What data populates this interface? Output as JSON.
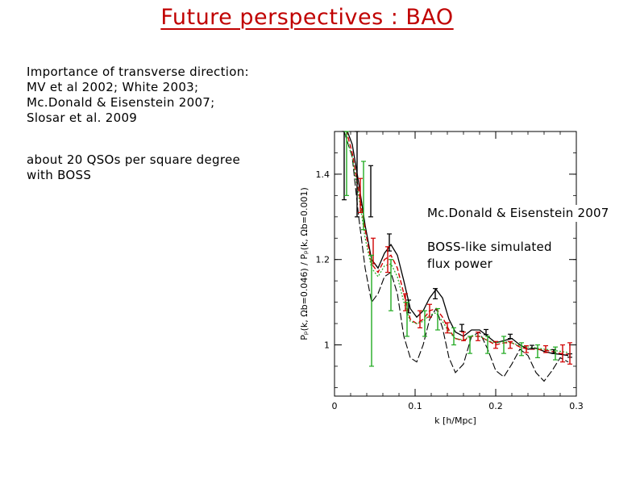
{
  "slide": {
    "title": "Future perspectives : BAO",
    "intro_lines": [
      "Importance of transverse direction:",
      "MV et al 2002; White 2003;",
      "Mc.Donald & Eisenstein 2007;",
      "Slosar et al. 2009"
    ],
    "boss_lines": [
      "about 20 QSOs per square degree",
      "with BOSS"
    ],
    "annotations": {
      "mcdonald": "Mc.Donald & Eisenstein 2007",
      "boss_lines": [
        "BOSS-like simulated",
        "flux power"
      ]
    }
  },
  "chart_data": {
    "type": "line",
    "xlabel": "k [h/Mpc]",
    "ylabel": "Pₚ(k, Ωb=0.046) / Pₚ(k, Ωb=0.001)",
    "xlim": [
      0,
      0.3
    ],
    "ylim": [
      0.88,
      1.5
    ],
    "xticks": [
      0,
      0.1,
      0.2,
      0.3
    ],
    "xtick_labels": [
      "0",
      "0.1",
      "0.2",
      "0.3"
    ],
    "yticks": [
      1,
      1.2,
      1.4
    ],
    "ytick_labels": [
      "1",
      "1.2",
      "1.4"
    ],
    "grid": false,
    "colors": {
      "black": "#000000",
      "red": "#d00000",
      "green": "#22aa22"
    },
    "series": [
      {
        "style": "black-solid",
        "x": [
          0.012,
          0.022,
          0.03,
          0.038,
          0.046,
          0.054,
          0.062,
          0.07,
          0.078,
          0.086,
          0.094,
          0.102,
          0.11,
          0.118,
          0.126,
          0.134,
          0.142,
          0.15,
          0.16,
          0.17,
          0.18,
          0.19,
          0.2,
          0.21,
          0.22,
          0.23,
          0.24,
          0.25,
          0.26,
          0.27,
          0.28,
          0.29
        ],
        "y": [
          1.52,
          1.47,
          1.38,
          1.28,
          1.2,
          1.18,
          1.215,
          1.235,
          1.21,
          1.15,
          1.085,
          1.065,
          1.08,
          1.11,
          1.13,
          1.11,
          1.06,
          1.03,
          1.02,
          1.035,
          1.035,
          1.02,
          1.005,
          1.01,
          1.015,
          1.0,
          0.99,
          0.992,
          0.985,
          0.98,
          0.978,
          0.975
        ]
      },
      {
        "style": "black-long-dash",
        "x": [
          0.012,
          0.022,
          0.03,
          0.038,
          0.046,
          0.054,
          0.062,
          0.07,
          0.078,
          0.086,
          0.094,
          0.102,
          0.11,
          0.118,
          0.126,
          0.134,
          0.142,
          0.15,
          0.16,
          0.17,
          0.18,
          0.19,
          0.2,
          0.21,
          0.22,
          0.23,
          0.24,
          0.25,
          0.26,
          0.27,
          0.28,
          0.29
        ],
        "y": [
          1.5,
          1.44,
          1.3,
          1.18,
          1.1,
          1.12,
          1.16,
          1.17,
          1.12,
          1.02,
          0.97,
          0.96,
          1.0,
          1.06,
          1.085,
          1.04,
          0.97,
          0.935,
          0.955,
          1.02,
          1.03,
          0.99,
          0.94,
          0.925,
          0.955,
          0.99,
          0.975,
          0.935,
          0.915,
          0.94,
          0.97,
          0.96
        ]
      },
      {
        "style": "red-dashed",
        "x": [
          0.012,
          0.022,
          0.03,
          0.038,
          0.046,
          0.054,
          0.062,
          0.07,
          0.078,
          0.086,
          0.094,
          0.102,
          0.11,
          0.118,
          0.126,
          0.134,
          0.142,
          0.15,
          0.16,
          0.17,
          0.18,
          0.19,
          0.2,
          0.21,
          0.22,
          0.23,
          0.24,
          0.25,
          0.26,
          0.27,
          0.28,
          0.29
        ],
        "y": [
          1.52,
          1.45,
          1.36,
          1.27,
          1.19,
          1.17,
          1.2,
          1.21,
          1.18,
          1.12,
          1.06,
          1.05,
          1.06,
          1.08,
          1.085,
          1.065,
          1.035,
          1.015,
          1.01,
          1.02,
          1.02,
          1.01,
          1.0,
          1.005,
          1.005,
          0.995,
          0.99,
          0.99,
          0.988,
          0.985,
          0.98,
          0.978
        ]
      },
      {
        "style": "green-dotted",
        "x": [
          0.012,
          0.022,
          0.03,
          0.038,
          0.046,
          0.054,
          0.062,
          0.07,
          0.078,
          0.086,
          0.094,
          0.102,
          0.11,
          0.118,
          0.126,
          0.134,
          0.142,
          0.15,
          0.16,
          0.17,
          0.18,
          0.19,
          0.2,
          0.21,
          0.22,
          0.23,
          0.24,
          0.25,
          0.26,
          0.27,
          0.28,
          0.29
        ],
        "y": [
          1.5,
          1.44,
          1.35,
          1.25,
          1.18,
          1.16,
          1.185,
          1.19,
          1.16,
          1.1,
          1.055,
          1.05,
          1.055,
          1.07,
          1.075,
          1.055,
          1.03,
          1.015,
          1.012,
          1.022,
          1.02,
          1.01,
          1.005,
          1.008,
          1.005,
          0.998,
          0.995,
          0.993,
          0.99,
          0.988,
          0.985,
          0.982
        ]
      }
    ],
    "error_bars": [
      {
        "color": "black",
        "x": [
          0.012,
          0.028,
          0.045,
          0.068,
          0.092,
          0.125,
          0.158,
          0.188,
          0.218,
          0.245,
          0.272,
          0.292
        ],
        "y": [
          1.46,
          1.4,
          1.36,
          1.24,
          1.09,
          1.12,
          1.04,
          1.03,
          1.02,
          0.995,
          0.985,
          0.975
        ],
        "err": [
          0.12,
          0.1,
          0.06,
          0.02,
          0.015,
          0.012,
          0.008,
          0.006,
          0.005,
          0.004,
          0.004,
          0.004
        ]
      },
      {
        "color": "red",
        "x": [
          0.032,
          0.048,
          0.066,
          0.088,
          0.106,
          0.118,
          0.14,
          0.16,
          0.178,
          0.2,
          0.218,
          0.238,
          0.262,
          0.283,
          0.292
        ],
        "y": [
          1.35,
          1.22,
          1.2,
          1.1,
          1.06,
          1.08,
          1.04,
          1.02,
          1.02,
          1.0,
          1.0,
          0.99,
          0.99,
          0.98,
          0.98
        ],
        "err": [
          0.04,
          0.03,
          0.03,
          0.02,
          0.02,
          0.015,
          0.012,
          0.01,
          0.01,
          0.008,
          0.008,
          0.008,
          0.008,
          0.02,
          0.025
        ]
      },
      {
        "color": "green",
        "x": [
          0.015,
          0.036,
          0.046,
          0.07,
          0.09,
          0.112,
          0.128,
          0.148,
          0.168,
          0.19,
          0.21,
          0.232,
          0.252,
          0.274
        ],
        "y": [
          1.45,
          1.35,
          1.08,
          1.14,
          1.06,
          1.05,
          1.06,
          1.02,
          1.0,
          1.0,
          1.0,
          0.99,
          0.985,
          0.98
        ],
        "err": [
          0.1,
          0.08,
          0.13,
          0.06,
          0.04,
          0.03,
          0.025,
          0.02,
          0.02,
          0.02,
          0.02,
          0.015,
          0.015,
          0.015
        ]
      }
    ]
  }
}
